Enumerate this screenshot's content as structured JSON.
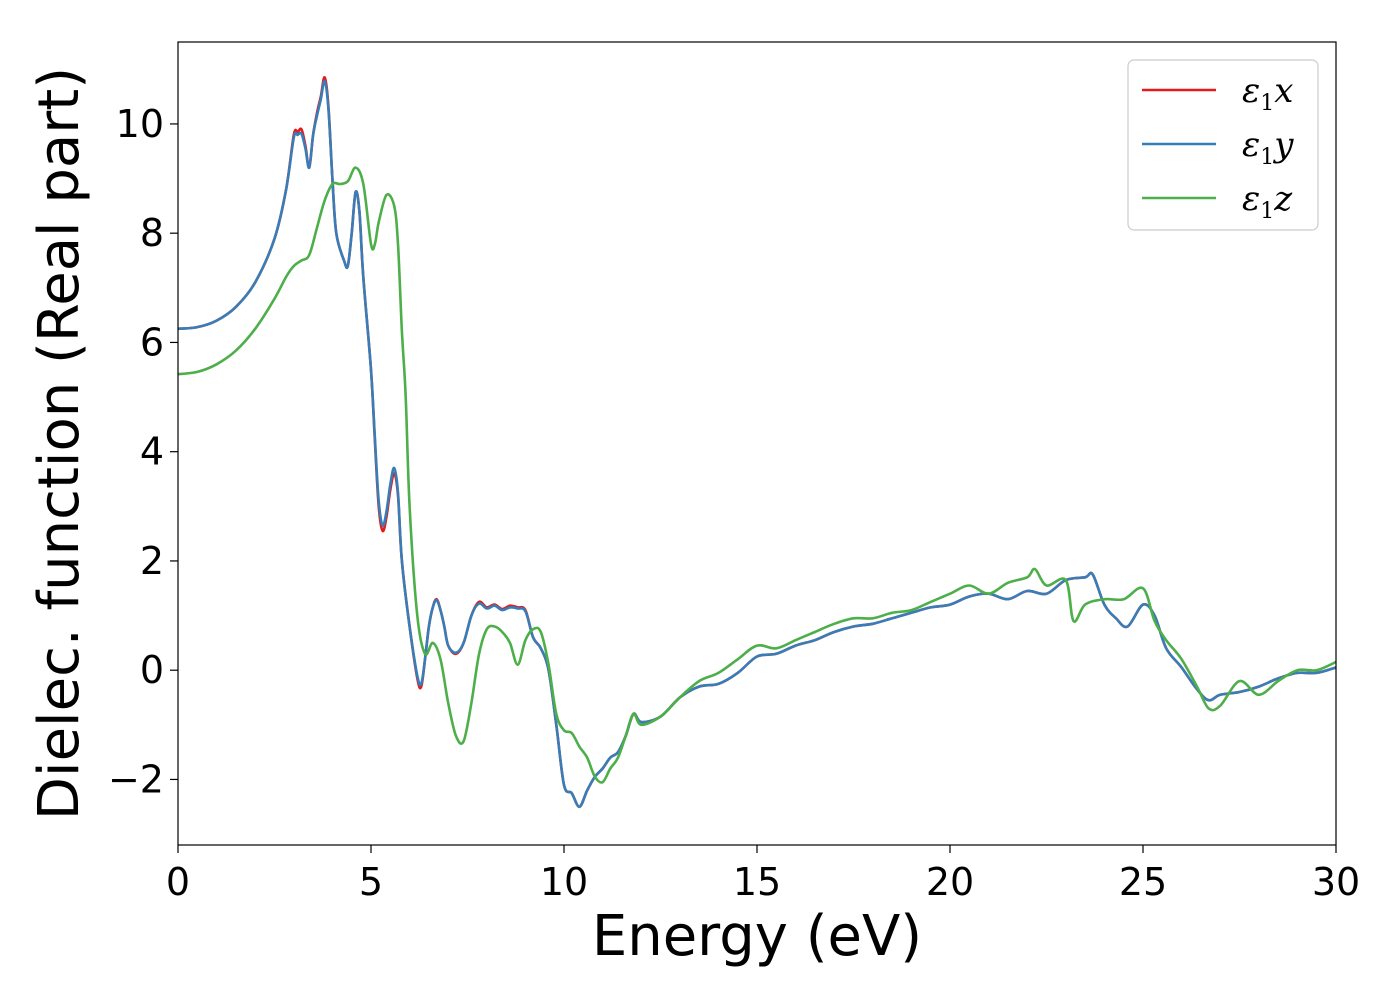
{
  "chart_data": {
    "type": "line",
    "xlabel": "Energy (eV)",
    "ylabel": "Dielec. function (Real part)",
    "xlim": [
      0,
      30
    ],
    "ylim": [
      -3.2,
      11.5
    ],
    "xticks": [
      0,
      5,
      10,
      15,
      20,
      25,
      30
    ],
    "xtick_labels": [
      "0",
      "5",
      "10",
      "15",
      "20",
      "25",
      "30"
    ],
    "yticks": [
      -2,
      0,
      2,
      4,
      6,
      8,
      10
    ],
    "ytick_labels": [
      "−2",
      "0",
      "2",
      "4",
      "6",
      "8",
      "10"
    ],
    "grid": false,
    "legend_position": "top-right",
    "series": [
      {
        "name": "ε₁x",
        "legend_symbol": "ε",
        "legend_sub": "1",
        "legend_var": "x",
        "color": "#e41a1c",
        "points": [
          [
            0,
            6.25
          ],
          [
            0.5,
            6.28
          ],
          [
            1,
            6.4
          ],
          [
            1.5,
            6.65
          ],
          [
            2,
            7.1
          ],
          [
            2.5,
            7.9
          ],
          [
            2.8,
            8.8
          ],
          [
            3.0,
            9.8
          ],
          [
            3.1,
            9.85
          ],
          [
            3.2,
            9.9
          ],
          [
            3.3,
            9.6
          ],
          [
            3.4,
            9.2
          ],
          [
            3.5,
            9.8
          ],
          [
            3.6,
            10.2
          ],
          [
            3.7,
            10.5
          ],
          [
            3.8,
            10.85
          ],
          [
            3.9,
            10.3
          ],
          [
            4.0,
            9.0
          ],
          [
            4.1,
            8.0
          ],
          [
            4.3,
            7.5
          ],
          [
            4.4,
            7.4
          ],
          [
            4.5,
            8.0
          ],
          [
            4.6,
            8.75
          ],
          [
            4.7,
            8.4
          ],
          [
            4.8,
            7.2
          ],
          [
            5.0,
            5.5
          ],
          [
            5.1,
            4.2
          ],
          [
            5.2,
            3.0
          ],
          [
            5.3,
            2.55
          ],
          [
            5.4,
            2.8
          ],
          [
            5.5,
            3.3
          ],
          [
            5.6,
            3.6
          ],
          [
            5.7,
            3.2
          ],
          [
            5.8,
            2.0
          ],
          [
            6.0,
            0.8
          ],
          [
            6.2,
            -0.15
          ],
          [
            6.3,
            -0.3
          ],
          [
            6.4,
            0.2
          ],
          [
            6.5,
            0.8
          ],
          [
            6.6,
            1.15
          ],
          [
            6.7,
            1.3
          ],
          [
            6.8,
            1.1
          ],
          [
            6.9,
            0.8
          ],
          [
            7.0,
            0.45
          ],
          [
            7.2,
            0.3
          ],
          [
            7.4,
            0.5
          ],
          [
            7.6,
            1.0
          ],
          [
            7.8,
            1.25
          ],
          [
            8.0,
            1.15
          ],
          [
            8.2,
            1.2
          ],
          [
            8.4,
            1.12
          ],
          [
            8.6,
            1.18
          ],
          [
            8.8,
            1.15
          ],
          [
            9.0,
            1.1
          ],
          [
            9.2,
            0.6
          ],
          [
            9.4,
            0.4
          ],
          [
            9.6,
            0.0
          ],
          [
            9.8,
            -1.0
          ],
          [
            10.0,
            -2.1
          ],
          [
            10.2,
            -2.25
          ],
          [
            10.4,
            -2.5
          ],
          [
            10.6,
            -2.2
          ],
          [
            10.8,
            -1.95
          ],
          [
            11.0,
            -1.8
          ],
          [
            11.2,
            -1.6
          ],
          [
            11.4,
            -1.5
          ],
          [
            11.6,
            -1.2
          ],
          [
            11.8,
            -0.8
          ],
          [
            12.0,
            -0.95
          ],
          [
            12.5,
            -0.85
          ],
          [
            13.0,
            -0.5
          ],
          [
            13.5,
            -0.3
          ],
          [
            14.0,
            -0.25
          ],
          [
            14.5,
            -0.05
          ],
          [
            15.0,
            0.25
          ],
          [
            15.5,
            0.3
          ],
          [
            16.0,
            0.45
          ],
          [
            16.5,
            0.55
          ],
          [
            17.0,
            0.7
          ],
          [
            17.5,
            0.8
          ],
          [
            18.0,
            0.85
          ],
          [
            18.5,
            0.95
          ],
          [
            19.0,
            1.05
          ],
          [
            19.5,
            1.15
          ],
          [
            20.0,
            1.2
          ],
          [
            20.5,
            1.35
          ],
          [
            21.0,
            1.4
          ],
          [
            21.5,
            1.3
          ],
          [
            22.0,
            1.45
          ],
          [
            22.5,
            1.4
          ],
          [
            23.0,
            1.65
          ],
          [
            23.5,
            1.7
          ],
          [
            23.7,
            1.75
          ],
          [
            24.0,
            1.2
          ],
          [
            24.3,
            0.95
          ],
          [
            24.6,
            0.8
          ],
          [
            25.0,
            1.2
          ],
          [
            25.3,
            1.0
          ],
          [
            25.6,
            0.4
          ],
          [
            26.0,
            0.05
          ],
          [
            26.4,
            -0.35
          ],
          [
            26.7,
            -0.55
          ],
          [
            27.0,
            -0.45
          ],
          [
            27.5,
            -0.4
          ],
          [
            28.0,
            -0.3
          ],
          [
            28.5,
            -0.15
          ],
          [
            29.0,
            -0.05
          ],
          [
            29.5,
            -0.05
          ],
          [
            30.0,
            0.05
          ]
        ]
      },
      {
        "name": "ε₁y",
        "legend_symbol": "ε",
        "legend_sub": "1",
        "legend_var": "y",
        "color": "#377eb8",
        "points": [
          [
            0,
            6.25
          ],
          [
            0.5,
            6.28
          ],
          [
            1,
            6.4
          ],
          [
            1.5,
            6.65
          ],
          [
            2,
            7.1
          ],
          [
            2.5,
            7.9
          ],
          [
            2.8,
            8.8
          ],
          [
            3.0,
            9.75
          ],
          [
            3.1,
            9.8
          ],
          [
            3.2,
            9.82
          ],
          [
            3.3,
            9.55
          ],
          [
            3.4,
            9.2
          ],
          [
            3.5,
            9.8
          ],
          [
            3.6,
            10.15
          ],
          [
            3.7,
            10.45
          ],
          [
            3.8,
            10.78
          ],
          [
            3.9,
            10.25
          ],
          [
            4.0,
            9.0
          ],
          [
            4.1,
            8.0
          ],
          [
            4.3,
            7.5
          ],
          [
            4.4,
            7.4
          ],
          [
            4.5,
            8.0
          ],
          [
            4.6,
            8.75
          ],
          [
            4.7,
            8.4
          ],
          [
            4.8,
            7.2
          ],
          [
            5.0,
            5.5
          ],
          [
            5.1,
            4.25
          ],
          [
            5.2,
            3.1
          ],
          [
            5.3,
            2.65
          ],
          [
            5.4,
            2.9
          ],
          [
            5.5,
            3.4
          ],
          [
            5.6,
            3.7
          ],
          [
            5.7,
            3.25
          ],
          [
            5.8,
            2.0
          ],
          [
            6.0,
            0.8
          ],
          [
            6.2,
            -0.1
          ],
          [
            6.3,
            -0.25
          ],
          [
            6.4,
            0.2
          ],
          [
            6.5,
            0.8
          ],
          [
            6.6,
            1.15
          ],
          [
            6.7,
            1.28
          ],
          [
            6.8,
            1.1
          ],
          [
            6.9,
            0.8
          ],
          [
            7.0,
            0.45
          ],
          [
            7.2,
            0.32
          ],
          [
            7.4,
            0.5
          ],
          [
            7.6,
            1.0
          ],
          [
            7.8,
            1.22
          ],
          [
            8.0,
            1.13
          ],
          [
            8.2,
            1.18
          ],
          [
            8.4,
            1.1
          ],
          [
            8.6,
            1.15
          ],
          [
            8.8,
            1.13
          ],
          [
            9.0,
            1.08
          ],
          [
            9.2,
            0.6
          ],
          [
            9.4,
            0.4
          ],
          [
            9.6,
            0.0
          ],
          [
            9.8,
            -1.0
          ],
          [
            10.0,
            -2.1
          ],
          [
            10.2,
            -2.25
          ],
          [
            10.4,
            -2.5
          ],
          [
            10.6,
            -2.2
          ],
          [
            10.8,
            -1.95
          ],
          [
            11.0,
            -1.8
          ],
          [
            11.2,
            -1.6
          ],
          [
            11.4,
            -1.5
          ],
          [
            11.6,
            -1.2
          ],
          [
            11.8,
            -0.8
          ],
          [
            12.0,
            -0.95
          ],
          [
            12.5,
            -0.85
          ],
          [
            13.0,
            -0.5
          ],
          [
            13.5,
            -0.3
          ],
          [
            14.0,
            -0.25
          ],
          [
            14.5,
            -0.05
          ],
          [
            15.0,
            0.25
          ],
          [
            15.5,
            0.3
          ],
          [
            16.0,
            0.45
          ],
          [
            16.5,
            0.55
          ],
          [
            17.0,
            0.7
          ],
          [
            17.5,
            0.8
          ],
          [
            18.0,
            0.85
          ],
          [
            18.5,
            0.95
          ],
          [
            19.0,
            1.05
          ],
          [
            19.5,
            1.15
          ],
          [
            20.0,
            1.2
          ],
          [
            20.5,
            1.35
          ],
          [
            21.0,
            1.4
          ],
          [
            21.5,
            1.3
          ],
          [
            22.0,
            1.45
          ],
          [
            22.5,
            1.4
          ],
          [
            23.0,
            1.65
          ],
          [
            23.5,
            1.7
          ],
          [
            23.7,
            1.75
          ],
          [
            24.0,
            1.2
          ],
          [
            24.3,
            0.95
          ],
          [
            24.6,
            0.8
          ],
          [
            25.0,
            1.2
          ],
          [
            25.3,
            1.0
          ],
          [
            25.6,
            0.4
          ],
          [
            26.0,
            0.05
          ],
          [
            26.4,
            -0.35
          ],
          [
            26.7,
            -0.55
          ],
          [
            27.0,
            -0.45
          ],
          [
            27.5,
            -0.4
          ],
          [
            28.0,
            -0.3
          ],
          [
            28.5,
            -0.15
          ],
          [
            29.0,
            -0.05
          ],
          [
            29.5,
            -0.05
          ],
          [
            30.0,
            0.05
          ]
        ]
      },
      {
        "name": "ε₁z",
        "legend_symbol": "ε",
        "legend_sub": "1",
        "legend_var": "z",
        "color": "#4daf4a",
        "points": [
          [
            0,
            5.42
          ],
          [
            0.5,
            5.46
          ],
          [
            1,
            5.6
          ],
          [
            1.5,
            5.85
          ],
          [
            2,
            6.25
          ],
          [
            2.5,
            6.8
          ],
          [
            2.8,
            7.2
          ],
          [
            3.0,
            7.4
          ],
          [
            3.2,
            7.5
          ],
          [
            3.4,
            7.6
          ],
          [
            3.6,
            8.1
          ],
          [
            3.8,
            8.6
          ],
          [
            4.0,
            8.9
          ],
          [
            4.2,
            8.9
          ],
          [
            4.4,
            8.95
          ],
          [
            4.6,
            9.2
          ],
          [
            4.8,
            8.9
          ],
          [
            5.0,
            7.8
          ],
          [
            5.1,
            7.8
          ],
          [
            5.2,
            8.2
          ],
          [
            5.4,
            8.7
          ],
          [
            5.6,
            8.5
          ],
          [
            5.7,
            7.8
          ],
          [
            5.8,
            6.2
          ],
          [
            5.9,
            5.0
          ],
          [
            6.0,
            3.0
          ],
          [
            6.2,
            1.0
          ],
          [
            6.4,
            0.3
          ],
          [
            6.6,
            0.5
          ],
          [
            6.8,
            0.2
          ],
          [
            7.0,
            -0.6
          ],
          [
            7.2,
            -1.2
          ],
          [
            7.4,
            -1.3
          ],
          [
            7.6,
            -0.6
          ],
          [
            7.8,
            0.3
          ],
          [
            8.0,
            0.75
          ],
          [
            8.2,
            0.8
          ],
          [
            8.4,
            0.7
          ],
          [
            8.6,
            0.5
          ],
          [
            8.8,
            0.1
          ],
          [
            9.0,
            0.55
          ],
          [
            9.2,
            0.75
          ],
          [
            9.4,
            0.7
          ],
          [
            9.6,
            0.1
          ],
          [
            9.8,
            -0.8
          ],
          [
            10.0,
            -1.1
          ],
          [
            10.2,
            -1.15
          ],
          [
            10.4,
            -1.4
          ],
          [
            10.6,
            -1.6
          ],
          [
            10.8,
            -1.95
          ],
          [
            11.0,
            -2.05
          ],
          [
            11.2,
            -1.8
          ],
          [
            11.4,
            -1.6
          ],
          [
            11.6,
            -1.2
          ],
          [
            11.8,
            -0.8
          ],
          [
            12.0,
            -1.0
          ],
          [
            12.5,
            -0.85
          ],
          [
            13.0,
            -0.5
          ],
          [
            13.5,
            -0.2
          ],
          [
            14.0,
            -0.05
          ],
          [
            14.5,
            0.2
          ],
          [
            15.0,
            0.45
          ],
          [
            15.5,
            0.4
          ],
          [
            16.0,
            0.55
          ],
          [
            16.5,
            0.7
          ],
          [
            17.0,
            0.85
          ],
          [
            17.5,
            0.95
          ],
          [
            18.0,
            0.95
          ],
          [
            18.5,
            1.05
          ],
          [
            19.0,
            1.1
          ],
          [
            19.5,
            1.25
          ],
          [
            20.0,
            1.4
          ],
          [
            20.5,
            1.55
          ],
          [
            21.0,
            1.4
          ],
          [
            21.5,
            1.6
          ],
          [
            22.0,
            1.7
          ],
          [
            22.2,
            1.85
          ],
          [
            22.5,
            1.55
          ],
          [
            23.0,
            1.65
          ],
          [
            23.2,
            0.9
          ],
          [
            23.5,
            1.2
          ],
          [
            24.0,
            1.3
          ],
          [
            24.5,
            1.3
          ],
          [
            25.0,
            1.5
          ],
          [
            25.3,
            0.9
          ],
          [
            25.6,
            0.55
          ],
          [
            26.0,
            0.2
          ],
          [
            26.4,
            -0.3
          ],
          [
            26.7,
            -0.7
          ],
          [
            27.0,
            -0.65
          ],
          [
            27.5,
            -0.2
          ],
          [
            28.0,
            -0.45
          ],
          [
            28.5,
            -0.2
          ],
          [
            29.0,
            0.0
          ],
          [
            29.5,
            0.0
          ],
          [
            30.0,
            0.15
          ]
        ]
      }
    ]
  }
}
